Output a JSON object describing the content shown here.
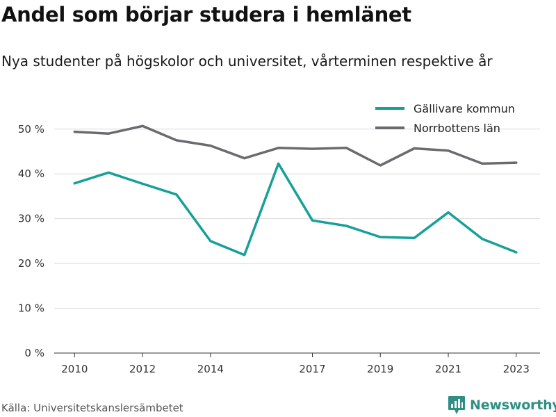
{
  "header": {
    "title": "Andel som börjar studera i hemlänet",
    "subtitle": "Nya studenter på högskolor och universitet, vårterminen respektive år"
  },
  "footer": {
    "source": "Källa: Universitetskanslersämbetet",
    "brand": "Newsworthy"
  },
  "colors": {
    "accent": "#17a097",
    "secondary": "#6b6a70",
    "grid": "#d9d9d9",
    "brand": "#2f8f86"
  },
  "icons": {
    "brand_logo": "newsworthy-logo-icon"
  },
  "chart_data": {
    "type": "line",
    "title": "Andel som börjar studera i hemlänet",
    "subtitle": "Nya studenter på högskolor och universitet, vårterminen respektive år",
    "x": [
      2010,
      2011,
      2012,
      2013,
      2014,
      2015,
      2016,
      2017,
      2018,
      2019,
      2020,
      2021,
      2022,
      2023
    ],
    "x_tick_labels": [
      "2010",
      "2012",
      "2014",
      "2017",
      "2019",
      "2021",
      "2023"
    ],
    "x_ticks": [
      2010,
      2012,
      2014,
      2017,
      2019,
      2021,
      2023
    ],
    "xlim": [
      2009.4,
      2023.7
    ],
    "ylim": [
      0,
      54
    ],
    "y_ticks": [
      0,
      10,
      20,
      30,
      40,
      50
    ],
    "y_tick_labels": [
      "0 %",
      "10 %",
      "20 %",
      "30 %",
      "40 %",
      "50 %"
    ],
    "grid": true,
    "legend_position": "top-right",
    "series": [
      {
        "name": "Gällivare kommun",
        "color": "#17a097",
        "values": [
          37.9,
          40.3,
          37.8,
          35.4,
          25.0,
          21.9,
          42.3,
          29.6,
          28.4,
          25.9,
          25.7,
          31.4,
          25.5,
          22.5
        ]
      },
      {
        "name": "Norrbottens län",
        "color": "#6b6a70",
        "values": [
          49.4,
          49.0,
          50.7,
          47.5,
          46.3,
          43.5,
          45.8,
          45.6,
          45.8,
          41.9,
          45.7,
          45.2,
          42.3,
          42.5
        ]
      }
    ]
  }
}
